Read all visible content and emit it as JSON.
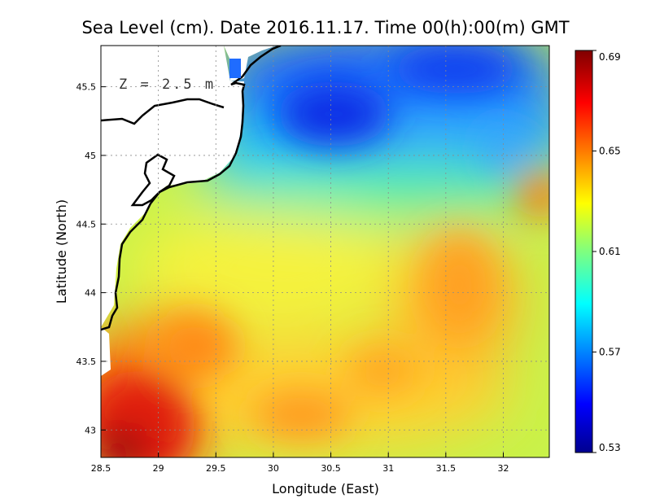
{
  "chart_data": {
    "type": "heatmap",
    "title": "Sea Level (cm). Date 2016.11.17. Time 00(h):00(m) GMT",
    "xlabel": "Longitude (East)",
    "ylabel": "Latitude (North)",
    "xlim": [
      28.5,
      32.4
    ],
    "ylim": [
      42.8,
      45.8
    ],
    "x_ticks": [
      "28.5",
      "29",
      "29.5",
      "30",
      "30.5",
      "31",
      "31.5",
      "32"
    ],
    "y_ticks": [
      "43",
      "43.5",
      "44",
      "44.5",
      "45",
      "45.5"
    ],
    "grid": true,
    "annotation": "Z = 2.5 m",
    "colorbar": {
      "min": 0.53,
      "max": 0.69,
      "ticks": [
        "0.69",
        "0.65",
        "0.61",
        "0.57",
        "0.53"
      ],
      "colormap": "jet"
    },
    "field_samples": [
      {
        "lon": 28.8,
        "lat": 42.9,
        "value": 0.69
      },
      {
        "lon": 28.8,
        "lat": 43.2,
        "value": 0.66
      },
      {
        "lon": 29.3,
        "lat": 43.6,
        "value": 0.65
      },
      {
        "lon": 30.2,
        "lat": 43.1,
        "value": 0.65
      },
      {
        "lon": 30.9,
        "lat": 43.4,
        "value": 0.645
      },
      {
        "lon": 31.5,
        "lat": 44.1,
        "value": 0.645
      },
      {
        "lon": 32.3,
        "lat": 44.7,
        "value": 0.65
      },
      {
        "lon": 31.0,
        "lat": 44.5,
        "value": 0.625
      },
      {
        "lon": 29.8,
        "lat": 44.3,
        "value": 0.625
      },
      {
        "lon": 30.5,
        "lat": 45.3,
        "value": 0.555
      },
      {
        "lon": 31.2,
        "lat": 45.6,
        "value": 0.56
      },
      {
        "lon": 29.7,
        "lat": 45.6,
        "value": 0.565
      },
      {
        "lon": 30.0,
        "lat": 45.0,
        "value": 0.59
      },
      {
        "lon": 32.0,
        "lat": 45.0,
        "value": 0.58
      },
      {
        "lon": 31.8,
        "lat": 45.3,
        "value": 0.6
      }
    ]
  }
}
